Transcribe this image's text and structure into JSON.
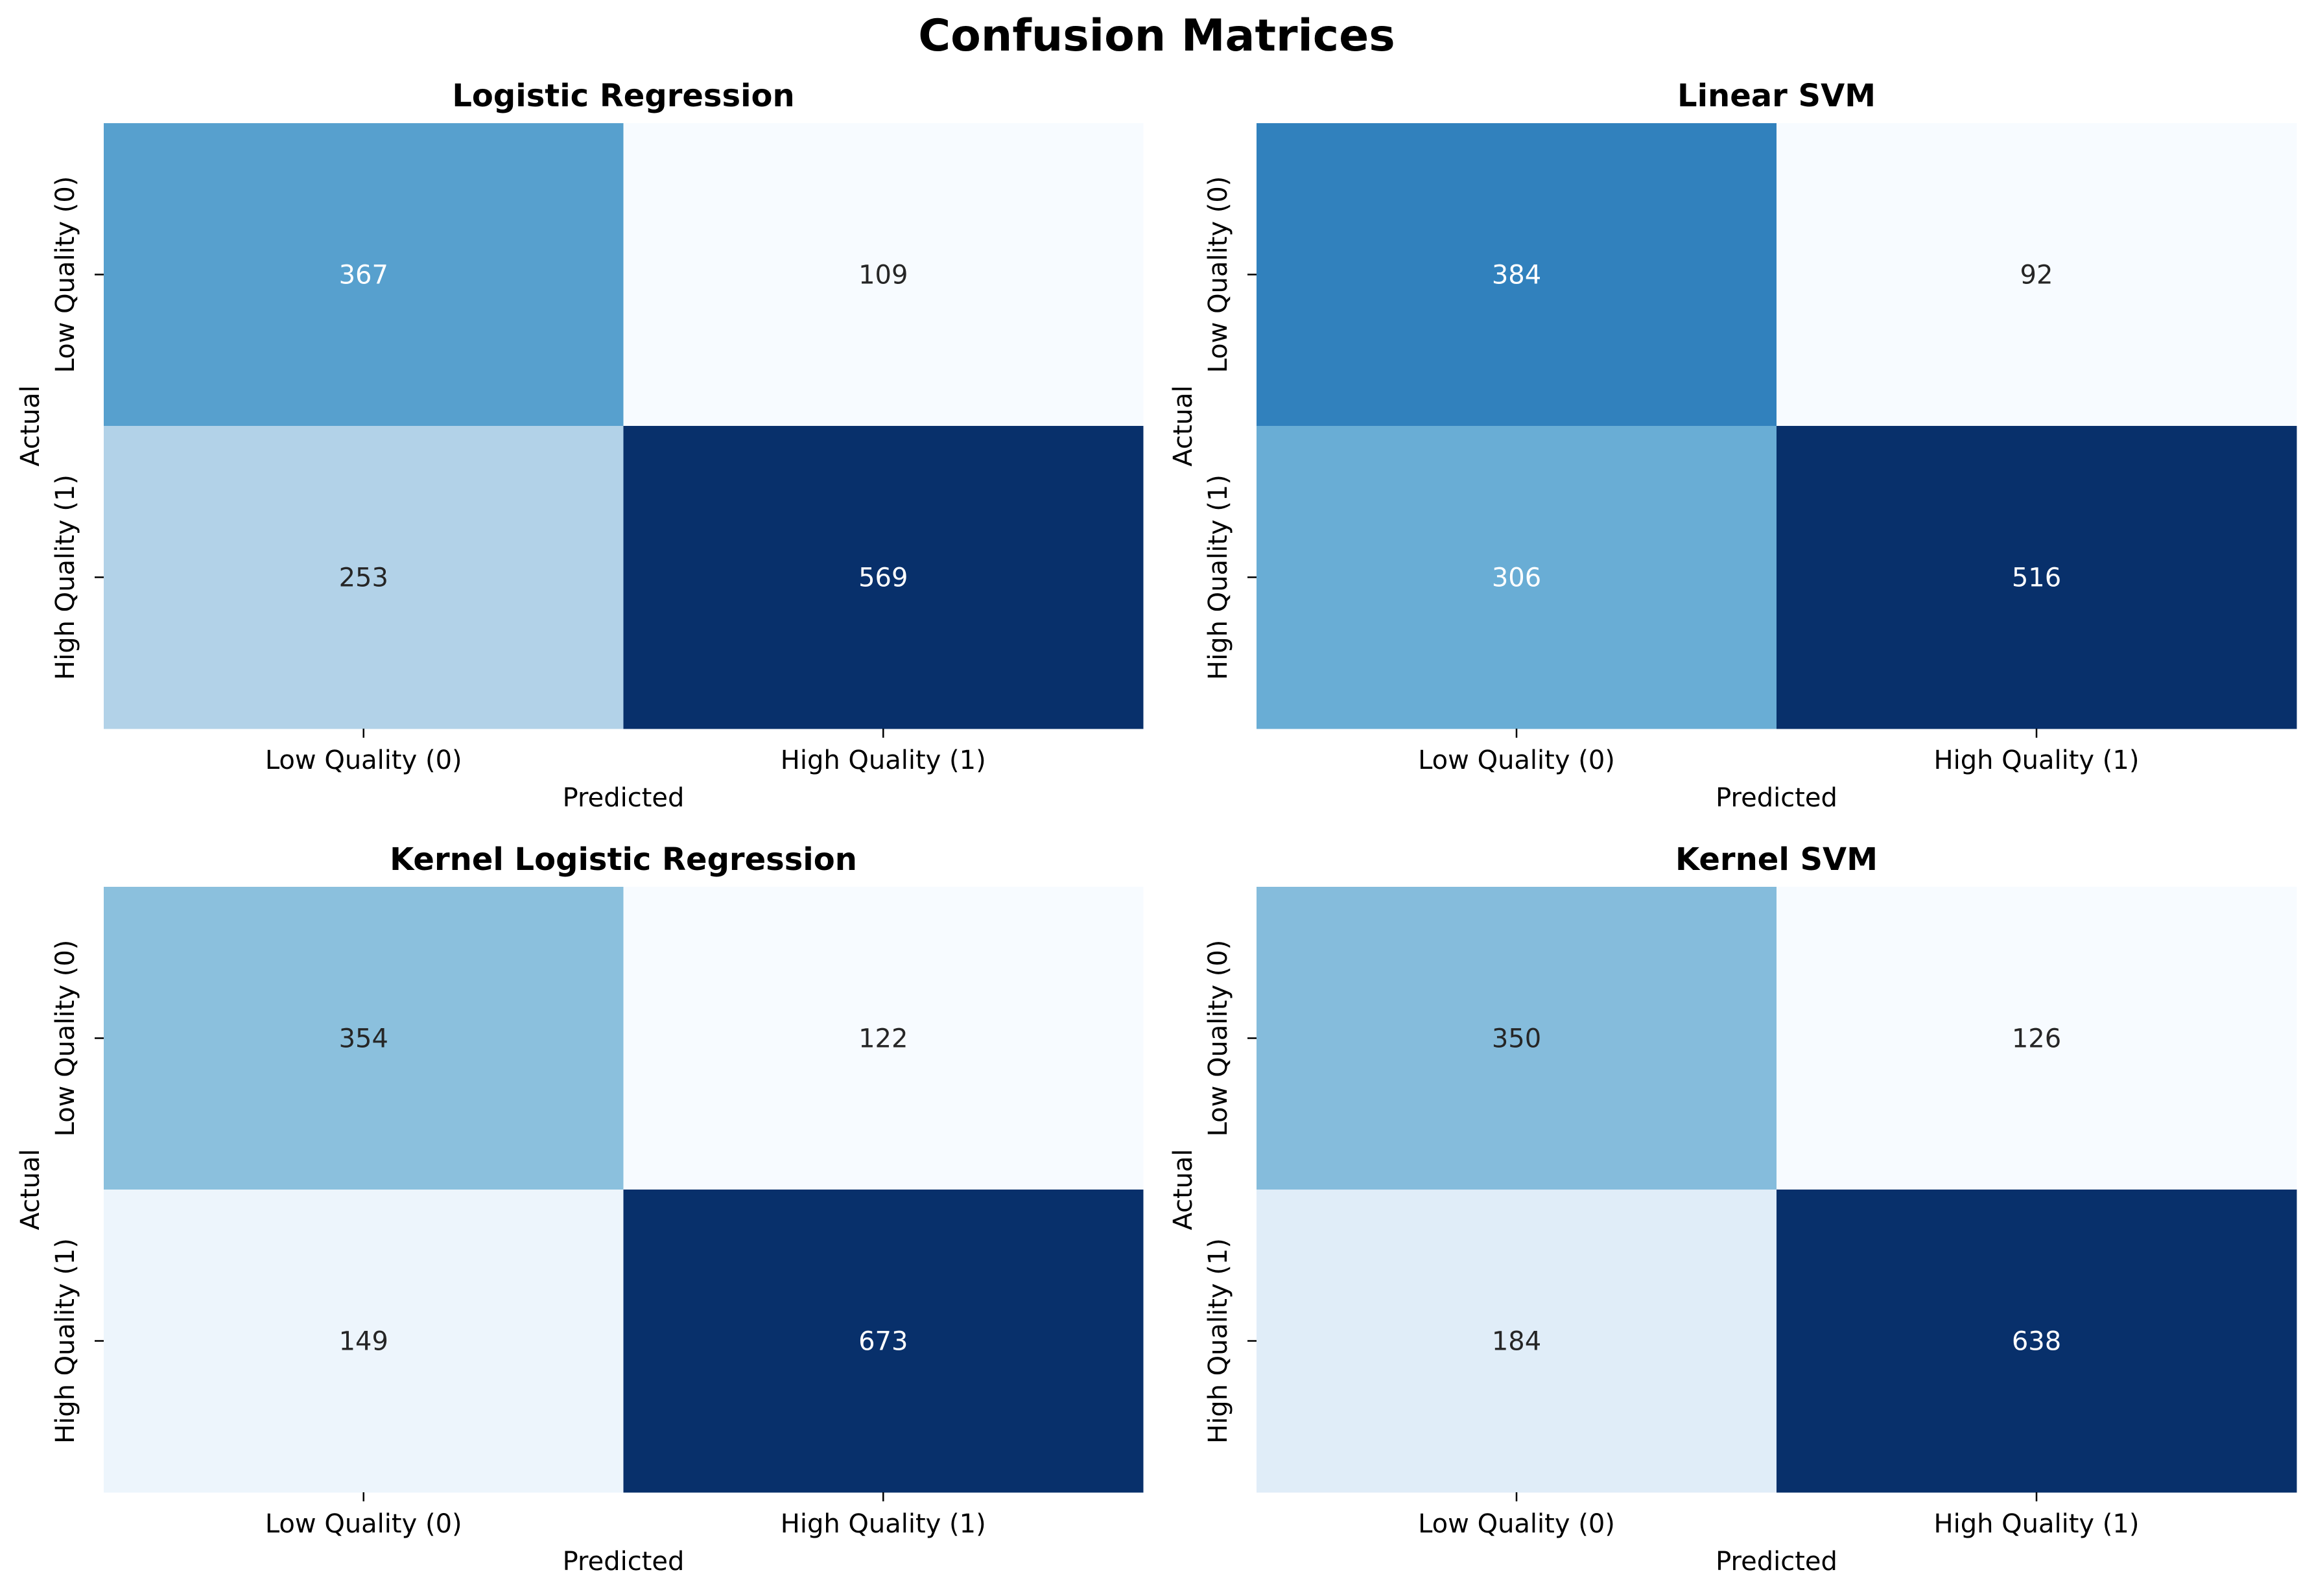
{
  "figure": {
    "title": "Confusion Matrices"
  },
  "chart_data": [
    {
      "type": "heatmap",
      "title": "Logistic Regression",
      "xlabel": "Predicted",
      "ylabel": "Actual",
      "x_categories": [
        "Low Quality (0)",
        "High Quality (1)"
      ],
      "y_categories": [
        "Low Quality (0)",
        "High Quality (1)"
      ],
      "values": [
        [
          367,
          109
        ],
        [
          253,
          569
        ]
      ],
      "colormap": "Blues",
      "colorbar": false,
      "annotations": true
    },
    {
      "type": "heatmap",
      "title": "Linear SVM",
      "xlabel": "Predicted",
      "ylabel": "Actual",
      "x_categories": [
        "Low Quality (0)",
        "High Quality (1)"
      ],
      "y_categories": [
        "Low Quality (0)",
        "High Quality (1)"
      ],
      "values": [
        [
          384,
          92
        ],
        [
          306,
          516
        ]
      ],
      "colormap": "Blues",
      "colorbar": false,
      "annotations": true
    },
    {
      "type": "heatmap",
      "title": "Kernel Logistic Regression",
      "xlabel": "Predicted",
      "ylabel": "Actual",
      "x_categories": [
        "Low Quality (0)",
        "High Quality (1)"
      ],
      "y_categories": [
        "Low Quality (0)",
        "High Quality (1)"
      ],
      "values": [
        [
          354,
          122
        ],
        [
          149,
          673
        ]
      ],
      "colormap": "Blues",
      "colorbar": false,
      "annotations": true
    },
    {
      "type": "heatmap",
      "title": "Kernel SVM",
      "xlabel": "Predicted",
      "ylabel": "Actual",
      "x_categories": [
        "Low Quality (0)",
        "High Quality (1)"
      ],
      "y_categories": [
        "Low Quality (0)",
        "High Quality (1)"
      ],
      "values": [
        [
          350,
          126
        ],
        [
          184,
          638
        ]
      ],
      "colormap": "Blues",
      "colorbar": false,
      "annotations": true
    }
  ],
  "colors": {
    "blues_low": "#f7fbff",
    "blues_high": "#08306b",
    "text_dark": "#262626",
    "text_light": "#ffffff"
  }
}
